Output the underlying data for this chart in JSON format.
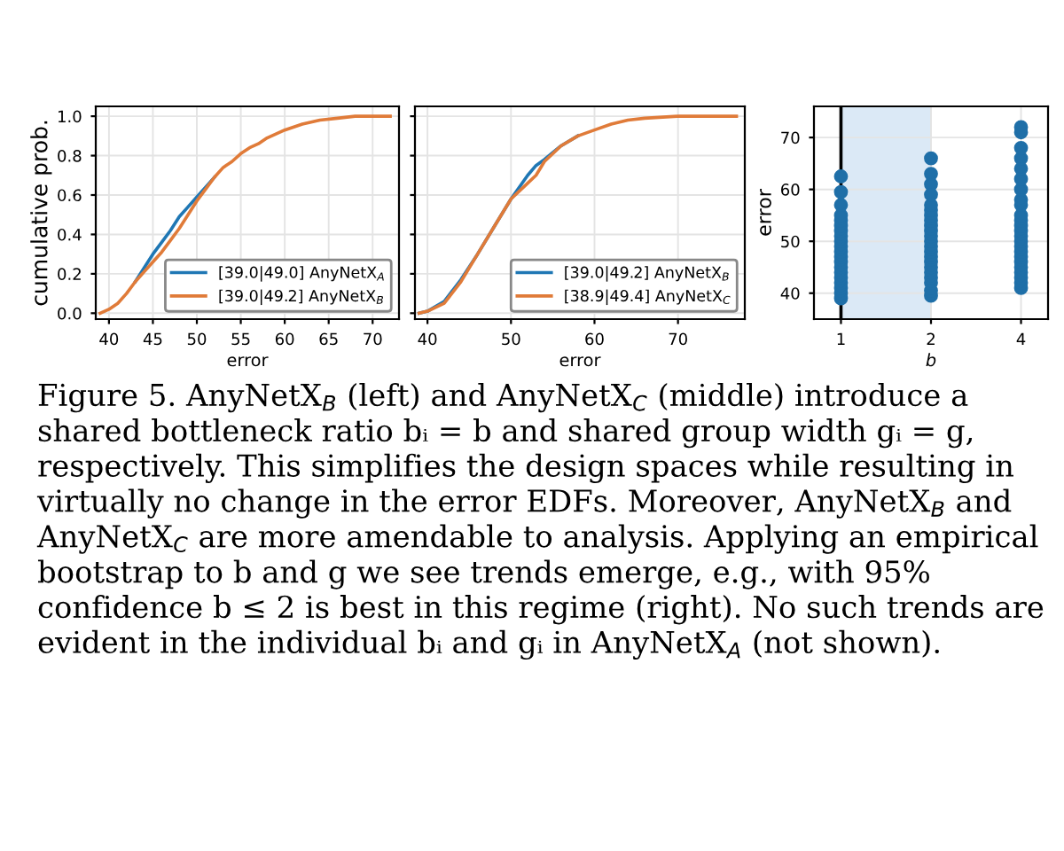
{
  "chart_data": [
    {
      "type": "line",
      "xlabel": "error",
      "ylabel": "cumulative prob.",
      "xlim": [
        38.5,
        73
      ],
      "xticks": [
        40,
        45,
        50,
        55,
        60,
        65,
        70
      ],
      "ylim": [
        -0.03,
        1.05
      ],
      "yticks": [
        {
          "value": 0,
          "label": "0.0"
        },
        0.2,
        0.4,
        0.6,
        0.8,
        {
          "value": 1,
          "label": "1.0"
        }
      ],
      "grid": true,
      "legend": "bottom right",
      "x": [
        39,
        40,
        41,
        42,
        43,
        44,
        45,
        46,
        47,
        48,
        49,
        50,
        51,
        52,
        53,
        54,
        55,
        56,
        57,
        58,
        60,
        62,
        64,
        66,
        68,
        70,
        72
      ],
      "series": [
        {
          "name": "[39.0|49.0] AnyNetX$_{A}$",
          "color": "#1f77b4",
          "values": [
            null,
            null,
            null,
            null,
            0.16,
            0.23,
            0.3,
            0.36,
            0.42,
            0.49,
            0.54,
            0.59,
            0.64,
            0.69,
            null,
            null,
            null,
            null,
            null,
            null,
            null,
            null,
            null,
            null,
            null,
            null,
            null
          ]
        },
        {
          "name": "[39.0|49.2] AnyNetX$_{B}$",
          "color": "#e07b39",
          "values": [
            0.0,
            0.02,
            0.05,
            0.1,
            0.16,
            0.21,
            0.26,
            0.31,
            0.37,
            0.43,
            0.5,
            0.57,
            0.63,
            0.69,
            0.74,
            0.77,
            0.81,
            0.84,
            0.86,
            0.89,
            0.93,
            0.96,
            0.98,
            0.99,
            1.0,
            1.0,
            1.0
          ]
        }
      ],
      "annotations": [
        "Figure 5. AnyNetX$_{B}$ (left) and AnyNetX$_{C}$ (middle) introduce a shared bottleneck ratio bᵢ = b and shared group width gᵢ = g, respectively. This simplifies the design spaces while resulting in virtually no change in the error EDFs. Moreover, AnyNetX$_{B}$ and AnyNetX$_{C}$ are more amendable to analysis. Applying an empirical bootstrap to b and g we see trends emerge, e.g., with 95% confidence b ≤ 2 is best in this regime (right). No such trends are evident in the individual bᵢ and gᵢ in AnyNetX$_{A}$ (not shown)."
      ]
    },
    {
      "type": "line",
      "xlabel": "error",
      "xlim": [
        38.5,
        78
      ],
      "xticks": [
        40,
        50,
        60,
        70
      ],
      "ylim": [
        -0.03,
        1.05
      ],
      "yticks": [
        0.0,
        0.2,
        0.4,
        0.6,
        0.8,
        1.0
      ],
      "tick_labels": "x",
      "grid": true,
      "legend": "bottom right",
      "x": [
        39,
        40,
        42,
        44,
        46,
        48,
        50,
        52,
        53,
        54,
        56,
        58,
        60,
        62,
        64,
        66,
        70,
        77
      ],
      "series": [
        {
          "name": "[39.0|49.2] AnyNetX$_{B}$",
          "color": "#1f77b4",
          "values": [
            0.0,
            0.01,
            0.06,
            0.17,
            0.3,
            0.44,
            0.58,
            0.7,
            0.75,
            0.78,
            0.85,
            0.9,
            null,
            null,
            null,
            null,
            null,
            null
          ]
        },
        {
          "name": "[38.9|49.4] AnyNetX$_{C}$",
          "color": "#e07b39",
          "values": [
            0.0,
            0.01,
            0.05,
            0.16,
            0.3,
            0.44,
            0.58,
            0.66,
            0.7,
            0.77,
            0.85,
            0.9,
            0.93,
            0.96,
            0.98,
            0.99,
            1.0,
            1.0
          ]
        }
      ]
    },
    {
      "type": "scatter",
      "xlabel": "b",
      "ylabel": "error",
      "categories": [
        "1",
        "2",
        "4"
      ],
      "ylim": [
        35,
        76
      ],
      "yticks": [
        40,
        50,
        60,
        70
      ],
      "grid": true,
      "marker": "circle",
      "bands": [
        {
          "axis": "x",
          "from": "1",
          "to": "2",
          "color": "#dbe9f6"
        }
      ],
      "ref_lines": [
        {
          "axis": "x",
          "value": "1",
          "color": "#000000"
        }
      ],
      "series": [
        {
          "color": "#1f6fa8",
          "x": [
            "1",
            "1",
            "1",
            "1",
            "1",
            "1",
            "1",
            "1",
            "1",
            "1",
            "1",
            "1",
            "1",
            "1",
            "1",
            "1",
            "1",
            "1",
            "1",
            "1",
            "2",
            "2",
            "2",
            "2",
            "2",
            "2",
            "2",
            "2",
            "2",
            "2",
            "2",
            "2",
            "2",
            "2",
            "2",
            "2",
            "2",
            "2",
            "2",
            "2",
            "2",
            "2",
            "4",
            "4",
            "4",
            "4",
            "4",
            "4",
            "4",
            "4",
            "4",
            "4",
            "4",
            "4",
            "4",
            "4",
            "4",
            "4",
            "4",
            "4",
            "4",
            "4",
            "4",
            "4",
            "4",
            "4"
          ],
          "values": [
            39,
            40,
            41,
            42,
            43,
            44,
            45,
            46,
            47,
            48,
            49,
            50,
            51,
            52,
            53,
            54,
            55,
            57,
            59.5,
            62.5,
            39.5,
            40.5,
            42,
            43,
            44,
            45,
            46,
            47,
            48,
            49,
            50,
            51,
            52,
            53,
            54,
            55,
            56,
            57,
            59,
            61,
            63,
            66,
            41,
            42,
            43,
            44,
            45,
            46,
            47,
            48,
            49,
            50,
            51,
            52,
            53,
            54,
            55,
            57,
            58,
            60,
            62,
            64,
            66,
            68,
            71,
            72
          ]
        }
      ]
    }
  ]
}
